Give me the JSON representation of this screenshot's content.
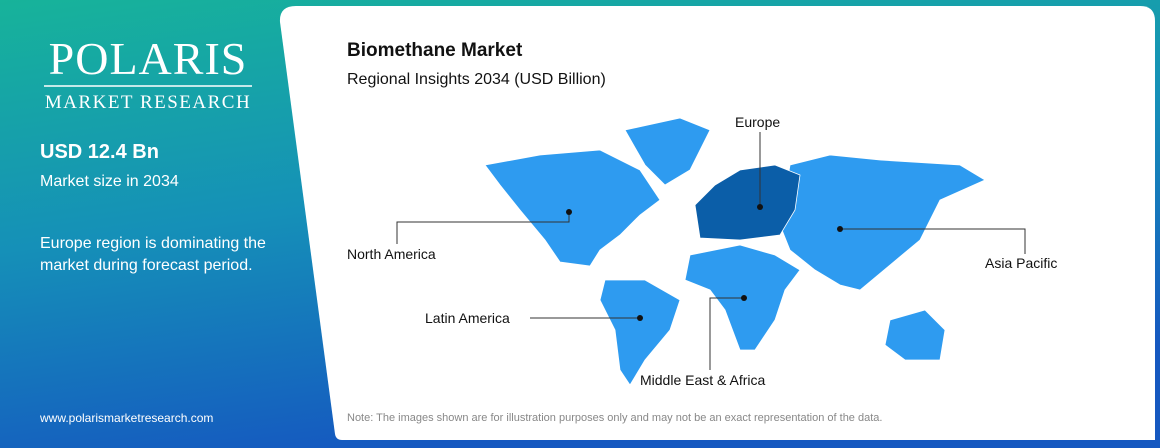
{
  "sidebar": {
    "logo": {
      "name": "POLARIS",
      "tagline": "MARKET RESEARCH"
    },
    "market_size": {
      "value": "USD 12.4 Bn",
      "caption": "Market size in 2034"
    },
    "insight": "Europe region is dominating the market during forecast period.",
    "website": "www.polarismarketresearch.com"
  },
  "main": {
    "title": "Biomethane Market",
    "subtitle": "Regional Insights 2034 (USD Billion)",
    "regions": [
      "Europe",
      "North America",
      "Asia Pacific",
      "Latin America",
      "Middle East & Africa"
    ],
    "note": "Note: The images shown are for illustration purposes only and may not be an exact representation of the data."
  }
}
